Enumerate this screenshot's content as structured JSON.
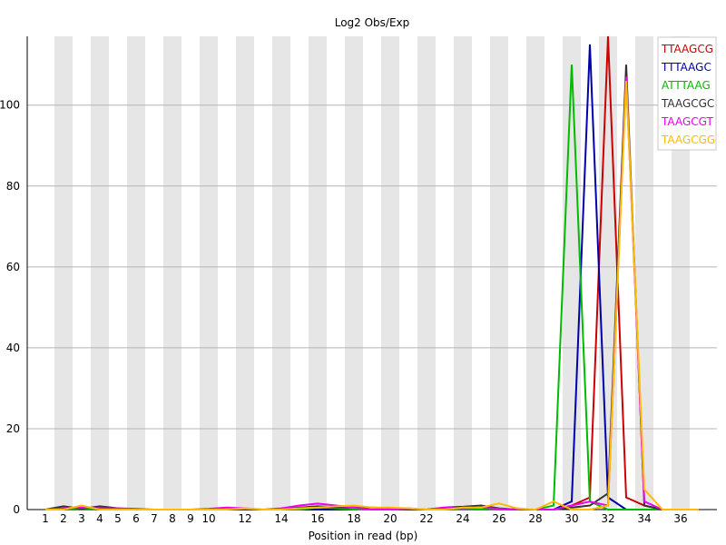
{
  "chart_data": {
    "type": "line",
    "title": "Log2 Obs/Exp",
    "xlabel": "Position in read (bp)",
    "ylabel": "",
    "x": [
      1,
      2,
      3,
      4,
      5,
      6,
      7,
      8,
      9,
      10,
      11,
      12,
      13,
      14,
      15,
      16,
      17,
      18,
      19,
      20,
      21,
      22,
      23,
      24,
      25,
      26,
      27,
      28,
      29,
      30,
      31,
      32,
      33,
      34,
      35,
      36,
      37
    ],
    "x_tick_labels": [
      "1",
      "2",
      "3",
      "4",
      "5",
      "6",
      "7",
      "8",
      "9",
      "10",
      "12",
      "14",
      "16",
      "18",
      "20",
      "22",
      "24",
      "26",
      "28",
      "30",
      "32",
      "34",
      "36"
    ],
    "x_tick_positions": [
      1,
      2,
      3,
      4,
      5,
      6,
      7,
      8,
      9,
      10,
      12,
      14,
      16,
      18,
      20,
      22,
      24,
      26,
      28,
      30,
      32,
      34,
      36
    ],
    "ylim": [
      0,
      117
    ],
    "y_ticks": [
      0,
      20,
      40,
      60,
      80,
      100
    ],
    "grid": "horizontal",
    "alternating_bands": true,
    "legend_placement": "top-right",
    "series": [
      {
        "name": "TTAAGCG",
        "color": "#cc0000",
        "values": [
          0,
          0,
          0,
          0,
          0,
          0,
          0,
          0,
          0,
          0,
          0,
          0,
          0,
          0,
          0,
          0,
          0,
          0,
          0,
          0,
          0,
          0,
          0,
          0,
          0,
          0,
          0,
          0,
          0,
          1,
          3,
          117,
          3,
          1,
          0,
          0,
          0
        ]
      },
      {
        "name": "TTTAAGC",
        "color": "#0000aa",
        "values": [
          0,
          0,
          0,
          0,
          0,
          0,
          0,
          0,
          0,
          0,
          0,
          0,
          0,
          0,
          0,
          0,
          0,
          0,
          0,
          0,
          0,
          0,
          0,
          0,
          0,
          0,
          0,
          0,
          0,
          2,
          115,
          3,
          0,
          0,
          0,
          0,
          0
        ]
      },
      {
        "name": "ATTTAAG",
        "color": "#00bb00",
        "values": [
          0,
          0,
          0,
          0,
          0,
          0,
          0,
          0,
          0,
          0,
          0,
          0,
          0,
          0,
          0,
          0.5,
          0.3,
          0,
          0,
          0,
          0,
          0,
          0,
          0,
          0,
          0,
          0,
          0,
          1,
          110,
          2,
          0,
          0,
          0,
          0,
          0,
          0
        ]
      },
      {
        "name": "TAAGCGC",
        "color": "#333333",
        "values": [
          0,
          0.8,
          0.2,
          0.8,
          0.3,
          0,
          0,
          0,
          0,
          0,
          0,
          0,
          0,
          0,
          0.5,
          0.8,
          0.6,
          0.5,
          0.5,
          0.3,
          0,
          0,
          0.5,
          0.7,
          1,
          0.3,
          0,
          0,
          0,
          0.5,
          1,
          4,
          110,
          1,
          0,
          0,
          0
        ]
      },
      {
        "name": "TAAGCGT",
        "color": "#ee00ee",
        "values": [
          0,
          0.3,
          0.5,
          0.3,
          0.3,
          0.2,
          0,
          0,
          0,
          0.2,
          0.5,
          0.3,
          0,
          0.3,
          1,
          1.5,
          1,
          0.5,
          0,
          0.2,
          0.3,
          0,
          0.5,
          0.3,
          0.5,
          0.2,
          0,
          0,
          0,
          1,
          2,
          1,
          107,
          2,
          0,
          0,
          0
        ]
      },
      {
        "name": "TAAGCGG",
        "color": "#ffbb00",
        "values": [
          0,
          0,
          1,
          0,
          0,
          0,
          0,
          0,
          0,
          0,
          0,
          0.3,
          0,
          0,
          0.3,
          0.5,
          0.8,
          1,
          0.5,
          0.5,
          0.3,
          0,
          0,
          0.5,
          0.5,
          1.5,
          0.3,
          0,
          2,
          0,
          0,
          1,
          106,
          5,
          0,
          0,
          0
        ]
      }
    ]
  }
}
